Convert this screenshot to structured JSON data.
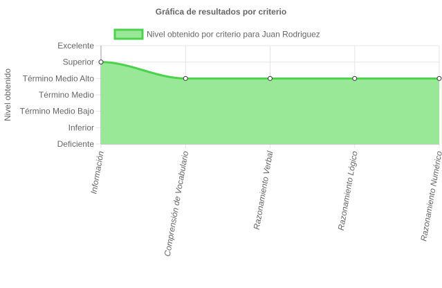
{
  "chart_data": {
    "type": "area",
    "title": "Gráfica de resultados por criterio",
    "ylabel": "Nivel obtenido",
    "xlabel": "",
    "categories": [
      "Información",
      "Comprensión de Vocabulario",
      "Razonamiento Verbal",
      "Razonamiento Lógico",
      "Razonamiento Numérico"
    ],
    "y_levels": [
      "Deficiente",
      "Inferior",
      "Término Medio Bajo",
      "Término Medio",
      "Término Medio Alto",
      "Superior",
      "Excelente"
    ],
    "ylim": [
      0,
      6
    ],
    "grid": true,
    "legend_position": "top",
    "series": [
      {
        "name": "Nivel obtenido por criterio para Juan Rodriguez",
        "values": [
          5,
          4,
          4,
          4,
          4
        ],
        "value_labels": [
          "Superior",
          "Término Medio Alto",
          "Término Medio Alto",
          "Término Medio Alto",
          "Término Medio Alto"
        ],
        "fill_color": "#98e898",
        "line_color": "#4cd24c"
      }
    ],
    "colors": {
      "grid": "#e6e6e6",
      "axis": "#999999",
      "text": "#666666",
      "title": "#666666",
      "point_fill": "#ffffff",
      "point_stroke": "#333333"
    }
  }
}
